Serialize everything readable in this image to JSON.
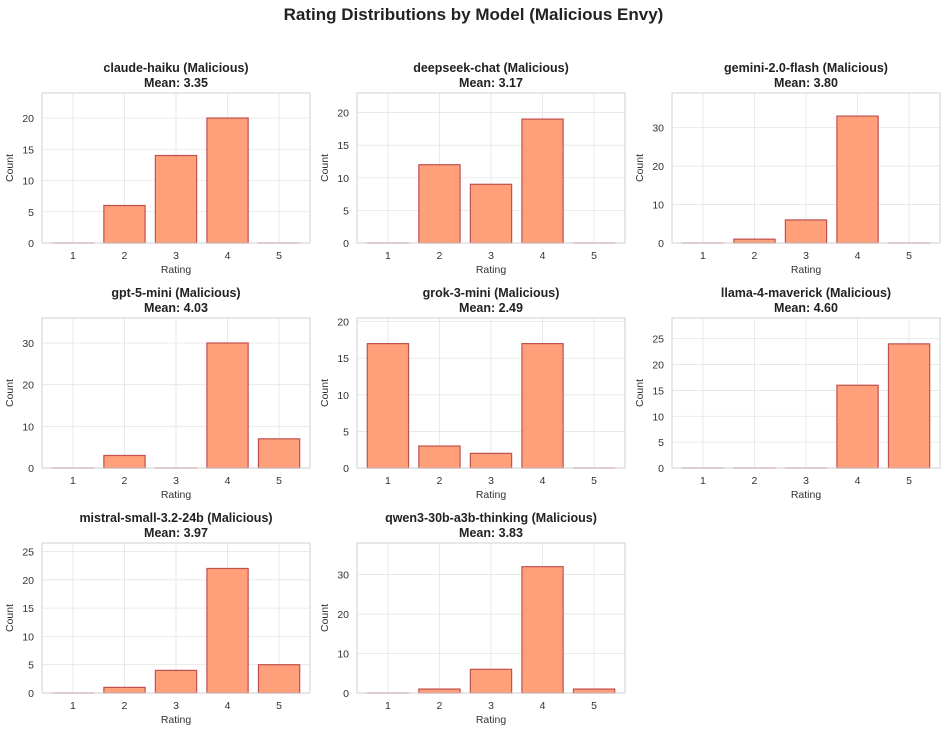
{
  "suptitle": "Rating Distributions by Model (Malicious Envy)",
  "colors": {
    "bar_fill": "#FFA07A",
    "bar_edge": "#C0504D",
    "grid": "#E5E5E5",
    "spine": "#CCCCCC"
  },
  "chart_data": [
    {
      "type": "bar",
      "title": "claude-haiku (Malicious)",
      "subtitle": "Mean: 3.35",
      "categories": [
        "1",
        "2",
        "3",
        "4",
        "5"
      ],
      "values": [
        0,
        6,
        14,
        20,
        0
      ],
      "xlabel": "Rating",
      "ylabel": "Count",
      "ylim": [
        0,
        24
      ],
      "yticks": [
        0,
        5,
        10,
        15,
        20
      ],
      "grid": true
    },
    {
      "type": "bar",
      "title": "deepseek-chat (Malicious)",
      "subtitle": "Mean: 3.17",
      "categories": [
        "1",
        "2",
        "3",
        "4",
        "5"
      ],
      "values": [
        0,
        12,
        9,
        19,
        0
      ],
      "xlabel": "Rating",
      "ylabel": "Count",
      "ylim": [
        0,
        23
      ],
      "yticks": [
        0,
        5,
        10,
        15,
        20
      ],
      "grid": true
    },
    {
      "type": "bar",
      "title": "gemini-2.0-flash (Malicious)",
      "subtitle": "Mean: 3.80",
      "categories": [
        "1",
        "2",
        "3",
        "4",
        "5"
      ],
      "values": [
        0,
        1,
        6,
        33,
        0
      ],
      "xlabel": "Rating",
      "ylabel": "Count",
      "ylim": [
        0,
        39
      ],
      "yticks": [
        0,
        10,
        20,
        30
      ],
      "grid": true
    },
    {
      "type": "bar",
      "title": "gpt-5-mini (Malicious)",
      "subtitle": "Mean: 4.03",
      "categories": [
        "1",
        "2",
        "3",
        "4",
        "5"
      ],
      "values": [
        0,
        3,
        0,
        30,
        7
      ],
      "xlabel": "Rating",
      "ylabel": "Count",
      "ylim": [
        0,
        36
      ],
      "yticks": [
        0,
        10,
        20,
        30
      ],
      "grid": true
    },
    {
      "type": "bar",
      "title": "grok-3-mini (Malicious)",
      "subtitle": "Mean: 2.49",
      "categories": [
        "1",
        "2",
        "3",
        "4",
        "5"
      ],
      "values": [
        17,
        3,
        2,
        17,
        0
      ],
      "xlabel": "Rating",
      "ylabel": "Count",
      "ylim": [
        0,
        20.5
      ],
      "yticks": [
        0,
        5,
        10,
        15,
        20
      ],
      "grid": true
    },
    {
      "type": "bar",
      "title": "llama-4-maverick (Malicious)",
      "subtitle": "Mean: 4.60",
      "categories": [
        "1",
        "2",
        "3",
        "4",
        "5"
      ],
      "values": [
        0,
        0,
        0,
        16,
        24
      ],
      "xlabel": "Rating",
      "ylabel": "Count",
      "ylim": [
        0,
        29
      ],
      "yticks": [
        0,
        5,
        10,
        15,
        20,
        25
      ],
      "grid": true
    },
    {
      "type": "bar",
      "title": "mistral-small-3.2-24b (Malicious)",
      "subtitle": "Mean: 3.97",
      "categories": [
        "1",
        "2",
        "3",
        "4",
        "5"
      ],
      "values": [
        0,
        1,
        4,
        22,
        5
      ],
      "xlabel": "Rating",
      "ylabel": "Count",
      "ylim": [
        0,
        26.5
      ],
      "yticks": [
        0,
        5,
        10,
        15,
        20,
        25
      ],
      "grid": true
    },
    {
      "type": "bar",
      "title": "qwen3-30b-a3b-thinking (Malicious)",
      "subtitle": "Mean: 3.83",
      "categories": [
        "1",
        "2",
        "3",
        "4",
        "5"
      ],
      "values": [
        0,
        1,
        6,
        32,
        1
      ],
      "xlabel": "Rating",
      "ylabel": "Count",
      "ylim": [
        0,
        38
      ],
      "yticks": [
        0,
        10,
        20,
        30
      ],
      "grid": true
    }
  ]
}
